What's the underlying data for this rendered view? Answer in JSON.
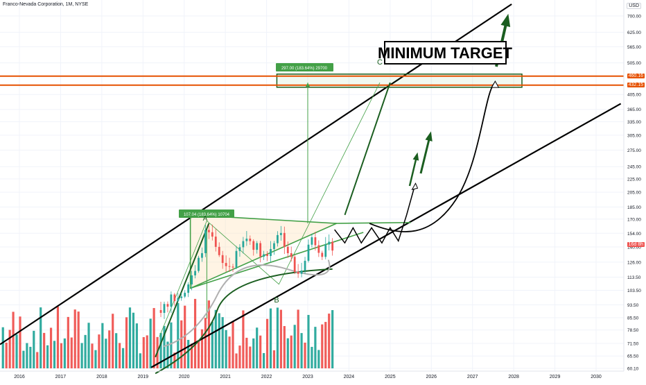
{
  "header": {
    "title": "Franco-Nevada Corporation, 1M, NYSE",
    "currency": "USD"
  },
  "price_levels": {
    "upper": "460.16",
    "lower": "432.15",
    "current": "16d 8h"
  },
  "annotations": {
    "big_label": "MINIMUM TARGET",
    "measure_small": "107.04 (183.64%) 10704",
    "measure_large": "297.00 (183.64%) 29700",
    "point_a": "A",
    "point_b": "B",
    "point_c": "C"
  },
  "colors": {
    "up": "#26a69a",
    "down": "#ef5350",
    "line": "#000000",
    "pattern_green": "#1b5e20",
    "zone_orange": "#e65100",
    "measure_bg": "#43a047"
  },
  "chart_data": {
    "type": "candlestick",
    "title": "Franco-Nevada Corporation, 1M, NYSE",
    "xlabel": "",
    "ylabel": "",
    "y_scale": "log",
    "x_ticks": [
      "2016",
      "2017",
      "2018",
      "2019",
      "2020",
      "2021",
      "2022",
      "2023",
      "2024",
      "2025",
      "2026",
      "2027",
      "2028",
      "2029",
      "2030"
    ],
    "y_ticks": [
      "700.00",
      "625.00",
      "565.00",
      "505.00",
      "460.00",
      "405.00",
      "365.00",
      "335.00",
      "305.00",
      "275.00",
      "245.00",
      "225.00",
      "205.00",
      "185.00",
      "170.00",
      "154.00",
      "140.00",
      "126.00",
      "113.50",
      "103.50",
      "93.50",
      "85.50",
      "78.50",
      "71.50",
      "65.50",
      "60.10"
    ],
    "ylim": [
      60.1,
      760
    ],
    "price_path": [
      [
        2016.0,
        60
      ],
      [
        2016.5,
        75
      ],
      [
        2017.0,
        64
      ],
      [
        2017.5,
        78
      ],
      [
        2018.0,
        73
      ],
      [
        2018.6,
        67
      ],
      [
        2019.0,
        75
      ],
      [
        2019.5,
        94
      ],
      [
        2020.0,
        104
      ],
      [
        2020.3,
        118
      ],
      [
        2020.55,
        158
      ],
      [
        2020.9,
        124
      ],
      [
        2021.15,
        122
      ],
      [
        2021.5,
        150
      ],
      [
        2022.0,
        130
      ],
      [
        2022.3,
        158
      ],
      [
        2022.75,
        112
      ],
      [
        2023.1,
        150
      ],
      [
        2023.35,
        135
      ],
      [
        2023.6,
        142
      ]
    ],
    "projected_path": [
      [
        2023.65,
        158
      ],
      [
        2023.9,
        144
      ],
      [
        2024.1,
        160
      ],
      [
        2024.3,
        144
      ],
      [
        2024.55,
        160
      ],
      [
        2024.8,
        144
      ],
      [
        2025.0,
        160
      ],
      [
        2025.2,
        146
      ],
      [
        2025.4,
        175
      ],
      [
        2025.6,
        215
      ]
    ],
    "target_zone": [
      432.15,
      460.16
    ],
    "levels": [
      432.15,
      460.16
    ]
  }
}
